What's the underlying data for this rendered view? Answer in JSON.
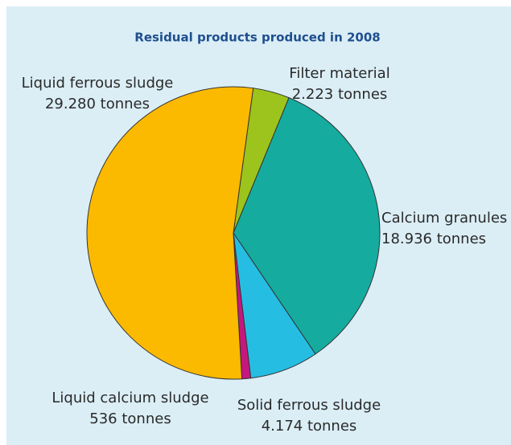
{
  "chart_data": {
    "type": "pie",
    "title": "Residual products produced in 2008",
    "categories": [
      "Filter material",
      "Calcium granules",
      "Solid ferrous sludge",
      "Liquid calcium sludge",
      "Liquid ferrous sludge"
    ],
    "values": [
      2223,
      18936,
      4174,
      536,
      29280
    ],
    "value_labels": [
      "2.223 tonnes",
      "18.936 tonnes",
      "4.174 tonnes",
      "536 tonnes",
      "29.280 tonnes"
    ],
    "colors": [
      "#9cc41c",
      "#15ac9f",
      "#26bde2",
      "#c6177f",
      "#fbb900"
    ]
  }
}
